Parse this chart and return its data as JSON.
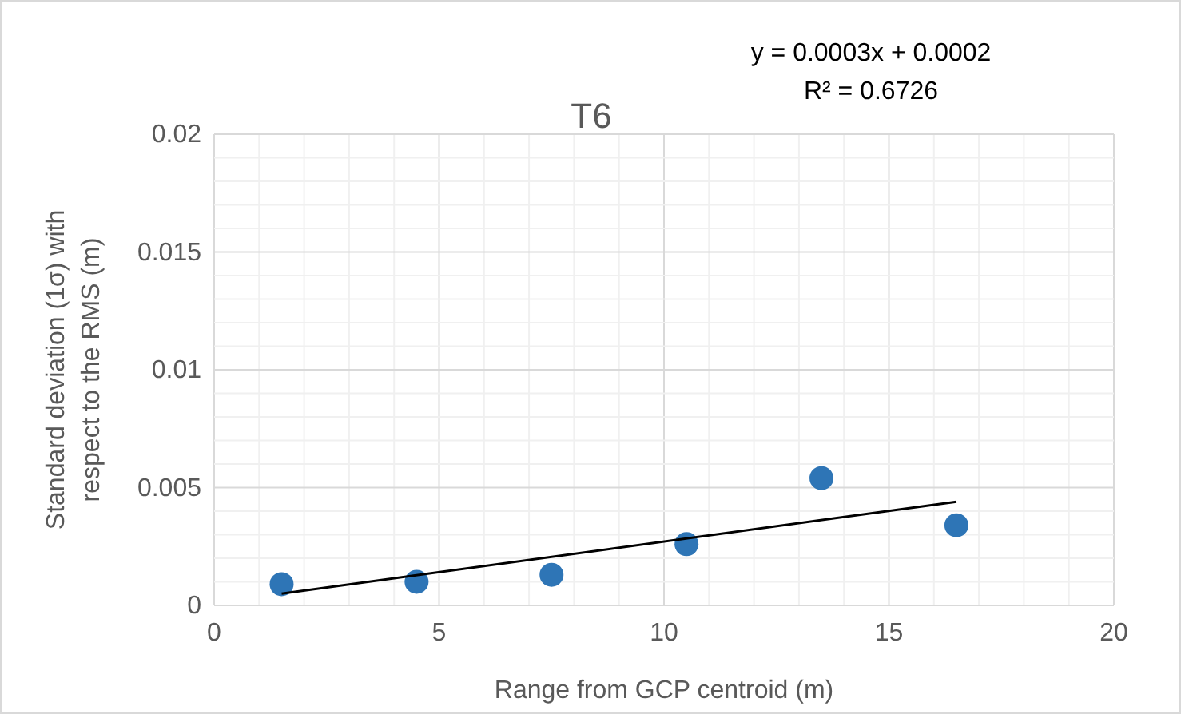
{
  "chart_data": {
    "type": "scatter",
    "title": "T6",
    "xlabel": "Range from GCP centroid (m)",
    "ylabel": "Standard deviation (1σ) with respect to the RMS (m)",
    "annotations": [
      "y = 0.0003x + 0.0002",
      "R² = 0.6726"
    ],
    "series": [
      {
        "color": "#2e75b6",
        "marker": "circle",
        "x": [
          1.5,
          4.5,
          7.5,
          10.5,
          13.5,
          16.5
        ],
        "values": [
          0.0009,
          0.001,
          0.0013,
          0.0026,
          0.0054,
          0.0034
        ]
      },
      {
        "type": "line",
        "color": "#000000",
        "marker": "none",
        "x": [
          1.5,
          16.5
        ],
        "values": [
          0.0005,
          0.0044
        ]
      }
    ],
    "xlim": [
      0,
      20
    ],
    "ylim": [
      0,
      0.02
    ],
    "xticks": [
      0,
      {
        "value": 1,
        "label": null
      },
      {
        "value": 2,
        "label": null
      },
      {
        "value": 3,
        "label": null
      },
      {
        "value": 4,
        "label": null
      },
      5,
      {
        "value": 6,
        "label": null
      },
      {
        "value": 7,
        "label": null
      },
      {
        "value": 8,
        "label": null
      },
      {
        "value": 9,
        "label": null
      },
      10,
      {
        "value": 11,
        "label": null
      },
      {
        "value": 12,
        "label": null
      },
      {
        "value": 13,
        "label": null
      },
      {
        "value": 14,
        "label": null
      },
      15,
      {
        "value": 16,
        "label": null
      },
      {
        "value": 17,
        "label": null
      },
      {
        "value": 18,
        "label": null
      },
      {
        "value": 19,
        "label": null
      },
      20
    ],
    "yticks": [
      0,
      {
        "value": 0.001,
        "label": null
      },
      {
        "value": 0.002,
        "label": null
      },
      {
        "value": 0.003,
        "label": null
      },
      {
        "value": 0.004,
        "label": null
      },
      0.005,
      {
        "value": 0.006,
        "label": null
      },
      {
        "value": 0.007,
        "label": null
      },
      {
        "value": 0.008,
        "label": null
      },
      {
        "value": 0.009,
        "label": null
      },
      0.01,
      {
        "value": 0.011,
        "label": null
      },
      {
        "value": 0.012,
        "label": null
      },
      {
        "value": 0.013,
        "label": null
      },
      {
        "value": 0.014,
        "label": null
      },
      0.015,
      {
        "value": 0.016,
        "label": null
      },
      {
        "value": 0.017,
        "label": null
      },
      {
        "value": 0.018,
        "label": null
      },
      {
        "value": 0.019,
        "label": null
      },
      0.02
    ],
    "grid": true
  }
}
